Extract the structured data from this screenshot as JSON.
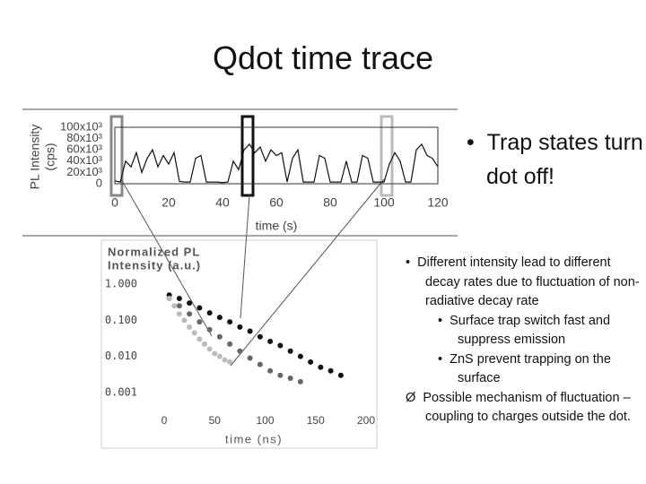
{
  "title": "Qdot time trace",
  "side_bullet": "Trap states turn dot off!",
  "bullets": [
    {
      "text": "Different intensity lead to different decay rates due to fluctuation of non- radiative decay rate",
      "sub": [
        "Surface trap switch fast and suppress emission",
        "ZnS prevent trapping on the surface"
      ]
    },
    {
      "text": "Possible mechanism of fluctuation – coupling to charges outside the dot."
    }
  ],
  "chart_data": [
    {
      "type": "line",
      "ylabel": [
        "PL Intensity",
        "(cps)"
      ],
      "xlabel": "time (s)",
      "x": [
        0,
        2,
        4,
        6,
        8,
        10,
        12,
        14,
        16,
        18,
        20,
        22,
        24,
        26,
        28,
        30,
        32,
        34,
        36,
        38,
        40,
        42,
        44,
        46,
        48,
        50,
        52,
        54,
        56,
        58,
        60,
        62,
        64,
        66,
        68,
        70,
        72,
        74,
        76,
        78,
        80,
        82,
        84,
        86,
        88,
        90,
        92,
        94,
        96,
        98,
        100,
        102,
        104,
        106,
        108,
        110,
        112,
        114,
        116,
        118,
        120
      ],
      "series": [
        {
          "color": "#111111",
          "values": [
            5000,
            3000,
            40000,
            30000,
            55000,
            20000,
            45000,
            60000,
            30000,
            50000,
            35000,
            55000,
            4000,
            3000,
            3000,
            45000,
            50000,
            3000,
            3000,
            3000,
            2000,
            3000,
            40000,
            25000,
            60000,
            70000,
            55000,
            65000,
            40000,
            60000,
            50000,
            55000,
            3000,
            45000,
            60000,
            3000,
            3000,
            3000,
            50000,
            45000,
            3000,
            3000,
            3000,
            40000,
            3000,
            3000,
            50000,
            45000,
            3000,
            3000,
            3000,
            35000,
            55000,
            40000,
            3000,
            3000,
            60000,
            70000,
            50000,
            45000,
            30000
          ]
        }
      ],
      "xlim": [
        0,
        120
      ],
      "xticks": [
        0,
        20,
        40,
        60,
        80,
        100,
        120
      ],
      "ylim": [
        0,
        100000
      ],
      "yticks": [
        0,
        {
          "value": 20000,
          "label": "20x10³"
        },
        {
          "value": 40000,
          "label": "40x10³"
        },
        {
          "value": 60000,
          "label": "60x10³"
        },
        {
          "value": 80000,
          "label": "80x10³"
        },
        {
          "value": 100000,
          "label": "100x10³"
        }
      ]
    },
    {
      "type": "scatter",
      "ylabel": [
        "Normalized PL",
        "Intensity (a.u.)"
      ],
      "xlabel": "time (ns)",
      "log_y": true,
      "xlim": [
        0,
        200
      ],
      "xticks": [
        0,
        50,
        100,
        150,
        200
      ],
      "ylim": [
        0.001,
        1
      ],
      "yticks": [
        {
          "value": 1,
          "label": "1.000"
        },
        {
          "value": 0.1,
          "label": "0.100"
        },
        {
          "value": 0.01,
          "label": "0.010"
        },
        {
          "value": 0.001,
          "label": "0.001"
        }
      ],
      "series": [
        {
          "color": "#111111",
          "x": [
            5,
            15,
            25,
            35,
            45,
            55,
            65,
            75,
            85,
            95,
            105,
            115,
            125,
            135,
            145,
            155,
            165,
            175
          ],
          "values": [
            0.5,
            0.4,
            0.3,
            0.22,
            0.16,
            0.12,
            0.09,
            0.065,
            0.05,
            0.035,
            0.026,
            0.02,
            0.014,
            0.01,
            0.007,
            0.005,
            0.004,
            0.003
          ]
        },
        {
          "color": "#666666",
          "x": [
            5,
            15,
            25,
            35,
            45,
            55,
            65,
            75,
            85,
            95,
            105,
            115,
            125,
            135
          ],
          "values": [
            0.4,
            0.25,
            0.15,
            0.09,
            0.055,
            0.035,
            0.022,
            0.014,
            0.009,
            0.006,
            0.004,
            0.003,
            0.0025,
            0.002
          ]
        },
        {
          "color": "#bbbbbb",
          "x": [
            5,
            10,
            15,
            20,
            25,
            30,
            35,
            40,
            45,
            50,
            55,
            60,
            65
          ],
          "values": [
            0.4,
            0.25,
            0.15,
            0.1,
            0.065,
            0.045,
            0.03,
            0.022,
            0.016,
            0.012,
            0.01,
            0.008,
            0.007
          ]
        }
      ]
    }
  ]
}
